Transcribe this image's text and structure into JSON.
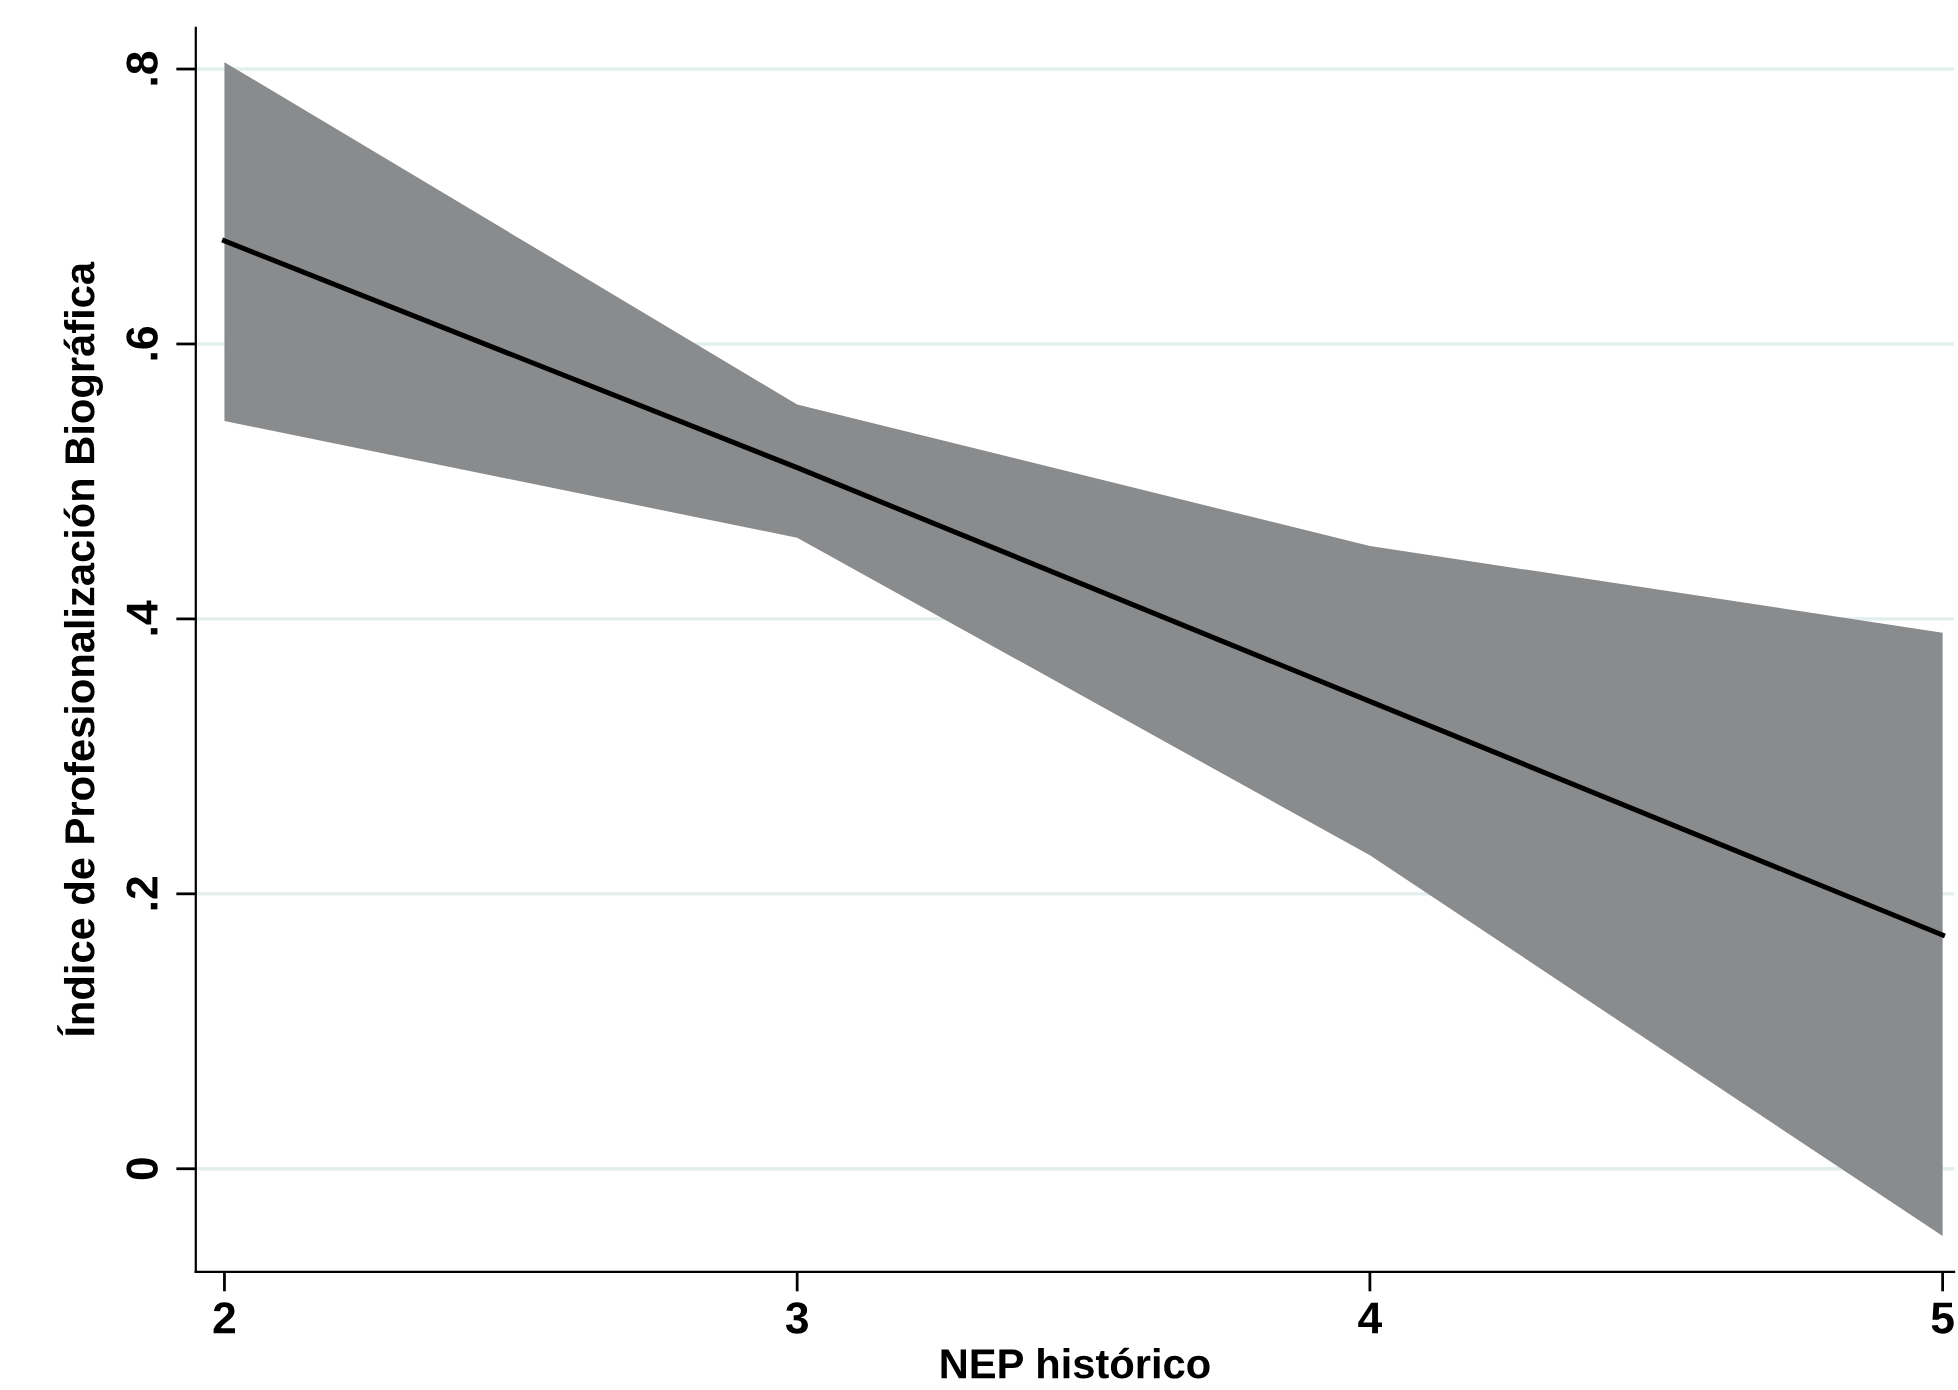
{
  "chart_data": {
    "type": "line",
    "xlabel": "NEP histórico",
    "ylabel": "Índice de Profesionalización Biográfica",
    "x": [
      2,
      3,
      4,
      5
    ],
    "series": [
      {
        "color": "#000000",
        "values": [
          0.675,
          0.51,
          0.34,
          0.17
        ],
        "lower": [
          0.544,
          0.459,
          0.228,
          -0.049
        ],
        "upper": [
          0.805,
          0.556,
          0.453,
          0.39
        ]
      }
    ],
    "xlim": [
      1.95,
      5.02
    ],
    "ylim": [
      -0.075,
      0.83
    ],
    "xticks": [
      2,
      3,
      4,
      5
    ],
    "yticks": [
      {
        "value": 0,
        "label": "0"
      },
      {
        "value": 0.2,
        "label": ".2"
      },
      {
        "value": 0.4,
        "label": ".4"
      },
      {
        "value": 0.6,
        "label": ".6"
      },
      {
        "value": 0.8,
        "label": ".8"
      }
    ],
    "grid": "y",
    "marker": "none",
    "line_style": "solid"
  }
}
